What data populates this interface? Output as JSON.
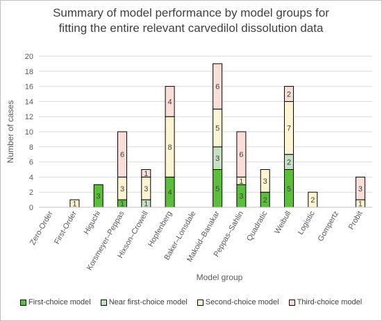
{
  "chart_data": {
    "type": "bar",
    "stacked": true,
    "title_lines": [
      "Summary of model performance by model groups for",
      "fitting the entire relevant carvedilol dissolution data"
    ],
    "xlabel": "Model group",
    "ylabel": "Number of cases",
    "ylim": [
      0,
      20
    ],
    "yticks": [
      0,
      2,
      4,
      6,
      8,
      10,
      12,
      14,
      16,
      18,
      20
    ],
    "grid": true,
    "legend_position": "bottom",
    "categories": [
      "Zero-Order",
      "First-Order",
      "Higuchi",
      "Korsmeyer–Peppas",
      "Hixson–Crowell",
      "Hopfenberg",
      "Baker–Lonsdale",
      "Makoid–Banakar",
      "Peppas–Sahlin",
      "Quadratic",
      "Weibull",
      "Logistic",
      "Gompertz",
      "Probit"
    ],
    "series": [
      {
        "name": "First-choice model",
        "color": "#5cbf3c",
        "values": [
          0,
          0,
          3,
          1,
          0,
          4,
          0,
          5,
          3,
          2,
          5,
          0,
          0,
          0
        ]
      },
      {
        "name": "Near first-choice model",
        "color": "#c6e0c2",
        "values": [
          0,
          0,
          0,
          0,
          1,
          0,
          0,
          3,
          0,
          0,
          2,
          0,
          0,
          0
        ]
      },
      {
        "name": "Second-choice model",
        "color": "#fdf5d2",
        "values": [
          0,
          1,
          0,
          3,
          3,
          8,
          0,
          5,
          1,
          3,
          7,
          2,
          0,
          1
        ]
      },
      {
        "name": "Third-choice model",
        "color": "#fbded8",
        "values": [
          0,
          0,
          0,
          6,
          1,
          4,
          0,
          6,
          6,
          0,
          2,
          0,
          0,
          3
        ]
      }
    ]
  }
}
